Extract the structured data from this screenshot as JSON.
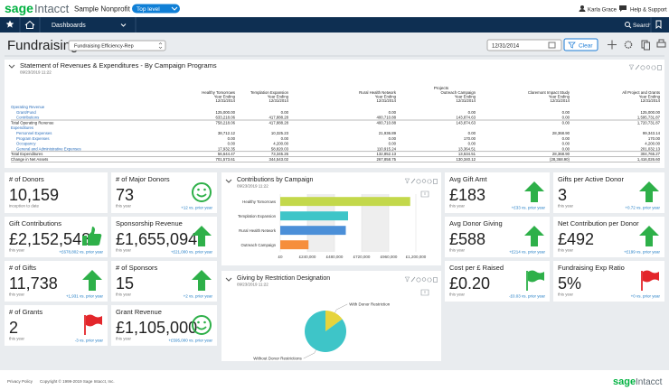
{
  "header": {
    "brand": "sage",
    "product": "Intacct",
    "company": "Sample Nonprofit",
    "entity": "Top level",
    "user": "Karla Grace",
    "help": "Help & Support"
  },
  "nav": {
    "menu": "Dashboards",
    "search": "Search"
  },
  "dashboard": {
    "title": "Fundraising",
    "view": "Fundraising Efficiency-Rep",
    "date": "12/31/2014",
    "clear": "Clear"
  },
  "report": {
    "title": "Statement of Revenues & Expenditures - By Campaign Programs",
    "timestamp": "09/23/2019 11:22",
    "group": "Projects",
    "columns": [
      {
        "name": "Healthy Tomorrows",
        "period": "Year Ending",
        "date": "12/31/2014"
      },
      {
        "name": "Templation Expansion",
        "period": "Year Ending",
        "date": "12/31/2014"
      },
      {
        "name": "Rural Health Network",
        "period": "Year Ending",
        "date": "12/31/2014"
      },
      {
        "name": "Outreach Campaign",
        "period": "Year Ending",
        "date": "12/31/2014"
      },
      {
        "name": "Claremont Impact Study",
        "period": "Year Ending",
        "date": "12/31/2014"
      },
      {
        "name": "All Project and Grants",
        "period": "Year Ending",
        "date": "12/31/2014"
      }
    ],
    "rows": [
      {
        "label": "Operating Revenue",
        "cells": []
      },
      {
        "label": "Grant/Fund",
        "cells": [
          "125,000.00",
          "0.00",
          "0.00",
          "0.00",
          "0.00",
          "125,000.00"
        ]
      },
      {
        "label": "Contributions",
        "cells": [
          "633,218.06",
          "417,888.28",
          "400,710.88",
          "143,874.63",
          "0.00",
          "1,595,731.87"
        ]
      },
      {
        "label": "Total Operating Revenue",
        "cells": [
          "758,218.06",
          "417,888.28",
          "400,710.88",
          "143,874.63",
          "0.00",
          "1,720,731.87"
        ]
      },
      {
        "label": "Expenditures",
        "cells": []
      },
      {
        "label": "Personnel Expenses",
        "cells": [
          "38,712.12",
          "10,325.23",
          "21,936.89",
          "0.00",
          "28,368.90",
          "99,343.14"
        ]
      },
      {
        "label": "Program Expenses",
        "cells": [
          "0.00",
          "0.00",
          "0.00",
          "170.00",
          "0.00",
          "170.00"
        ]
      },
      {
        "label": "Occupancy",
        "cells": [
          "0.00",
          "4,200.00",
          "0.00",
          "0.00",
          "0.00",
          "4,200.00"
        ]
      },
      {
        "label": "General and Administrative Expenses",
        "cells": [
          "17,932.35",
          "58,820.03",
          "110,915.24",
          "13,364.51",
          "0.00",
          "201,032.13"
        ]
      },
      {
        "label": "Total Expenditures",
        "cells": [
          "56,644.47",
          "73,345.26",
          "132,852.13",
          "13,534.51",
          "28,368.90",
          "304,765.27"
        ]
      },
      {
        "label": "Change in Net Assets",
        "cells": [
          "701,573.61",
          "344,543.02",
          "267,858.75",
          "130,340.12",
          "(28,368.90)",
          "1,416,026.60"
        ]
      }
    ]
  },
  "cards": [
    {
      "title": "# of Donors",
      "value": "10,159",
      "period": "inception to date"
    },
    {
      "title": "# of Major Donors",
      "value": "73",
      "period": "this year",
      "change": "+12 vs. prior year"
    },
    {
      "title": "Gift Contributions",
      "value": "£2,152,548",
      "period": "this year",
      "change": "+£678,802 vs. prior year"
    },
    {
      "title": "Sponsorship Revenue",
      "value": "£1,655,094",
      "period": "this year",
      "change": "+£21,000 vs. prior year"
    },
    {
      "title": "# of Gifts",
      "value": "11,738",
      "period": "this year",
      "change": "+1,931 vs. prior year"
    },
    {
      "title": "# of Sponsors",
      "value": "15",
      "period": "this year",
      "change": "+2 vs. prior year"
    },
    {
      "title": "# of Grants",
      "value": "2",
      "period": "this year",
      "change": "-3 vs. prior year"
    },
    {
      "title": "Grant Revenue",
      "value": "£1,105,000",
      "period": "this year",
      "change": "+£595,000 vs. prior year"
    },
    {
      "title": "Avg Gift Amt",
      "value": "£183",
      "period": "this year",
      "change": "+£33 vs. prior year"
    },
    {
      "title": "Gifts per Active Donor",
      "value": "3",
      "period": "this year",
      "change": "+0.72 vs. prior year"
    },
    {
      "title": "Avg Donor Giving",
      "value": "£588",
      "period": "this year",
      "change": "+£214 vs. prior year"
    },
    {
      "title": "Net Contribution per Donor",
      "value": "£492",
      "period": "this year",
      "change": "+£199 vs. prior year"
    },
    {
      "title": "Cost per £ Raised",
      "value": "£0.20",
      "period": "this year",
      "change": "-£0.03 vs. prior year"
    },
    {
      "title": "Fundraising Exp Ratio",
      "value": "5%",
      "period": "this year",
      "change": "+0 vs. prior year"
    }
  ],
  "chart_data": [
    {
      "type": "bar",
      "orientation": "horizontal",
      "title": "Contributions by Campaign",
      "subtitle": "09/23/2019 11:22",
      "categories": [
        "Healthy Tomorrows",
        "Templation Expansion",
        "Rural Health Network",
        "Outreach Campaign"
      ],
      "values": [
        1150000,
        600000,
        580000,
        250000
      ],
      "colors": [
        "#c3d84b",
        "#3ec5c8",
        "#4b8fd8",
        "#f68e3c"
      ],
      "xlim": [
        0,
        1200000
      ],
      "xticks": [
        {
          "value": 0,
          "label": "£0"
        },
        {
          "value": 240000,
          "label": "£240,000"
        },
        {
          "value": 480000,
          "label": "£480,000"
        },
        {
          "value": 720000,
          "label": "£720,000"
        },
        {
          "value": 960000,
          "label": "£960,000"
        },
        {
          "value": 1200000,
          "label": "£1,200,000"
        }
      ],
      "grid": true
    },
    {
      "type": "pie",
      "title": "Giving by Restriction Designation",
      "subtitle": "09/23/2019 11:22",
      "categories": [
        "With Donor Restriction",
        "Without Donor Restrictions"
      ],
      "values": [
        15,
        85
      ],
      "colors": [
        "#e6d43c",
        "#3ec5c8"
      ]
    }
  ],
  "footer": {
    "privacy": "Privacy Policy",
    "copyright": "Copyright © 1999-2019 Sage Intacct, Inc.",
    "brand": "sage",
    "product": "Intacct"
  }
}
